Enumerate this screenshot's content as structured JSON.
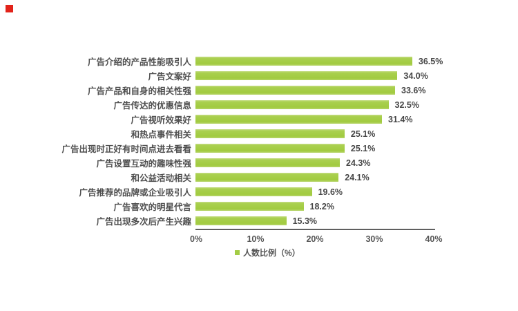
{
  "page": {
    "background_color": "#ffffff",
    "marker_color": "#e2231a"
  },
  "chart_data": {
    "type": "bar",
    "orientation": "horizontal",
    "title": "",
    "categories": [
      "广告介绍的产品性能吸引人",
      "广告文案好",
      "广告产品和自身的相关性强",
      "广告传达的优惠信息",
      "广告视听效果好",
      "和热点事件相关",
      "广告出现时正好有时间点进去看看",
      "广告设置互动的趣味性强",
      "和公益活动相关",
      "广告推荐的品牌或企业吸引人",
      "广告喜欢的明星代言",
      "广告出现多次后产生兴趣"
    ],
    "values": [
      36.5,
      34.0,
      33.6,
      32.5,
      31.4,
      25.1,
      25.1,
      24.3,
      24.1,
      19.6,
      18.2,
      15.3
    ],
    "value_suffix": "%",
    "value_labels": [
      "36.5%",
      "34.0%",
      "33.6%",
      "32.5%",
      "31.4%",
      "25.1%",
      "25.1%",
      "24.3%",
      "24.1%",
      "19.6%",
      "18.2%",
      "15.3%"
    ],
    "xlabel": "",
    "ylabel": "",
    "xlim": [
      0,
      40
    ],
    "x_tick_labels": [
      "0%",
      "10%",
      "20%",
      "30%",
      "40%"
    ],
    "grid": false,
    "bar_color": "#a3cc45",
    "text_color": "#4f4f4f",
    "axis_color": "#5f5f5f",
    "legend_position": "bottom",
    "legend": [
      {
        "label": "人数比例（%）",
        "color": "#a3cc45"
      }
    ]
  }
}
